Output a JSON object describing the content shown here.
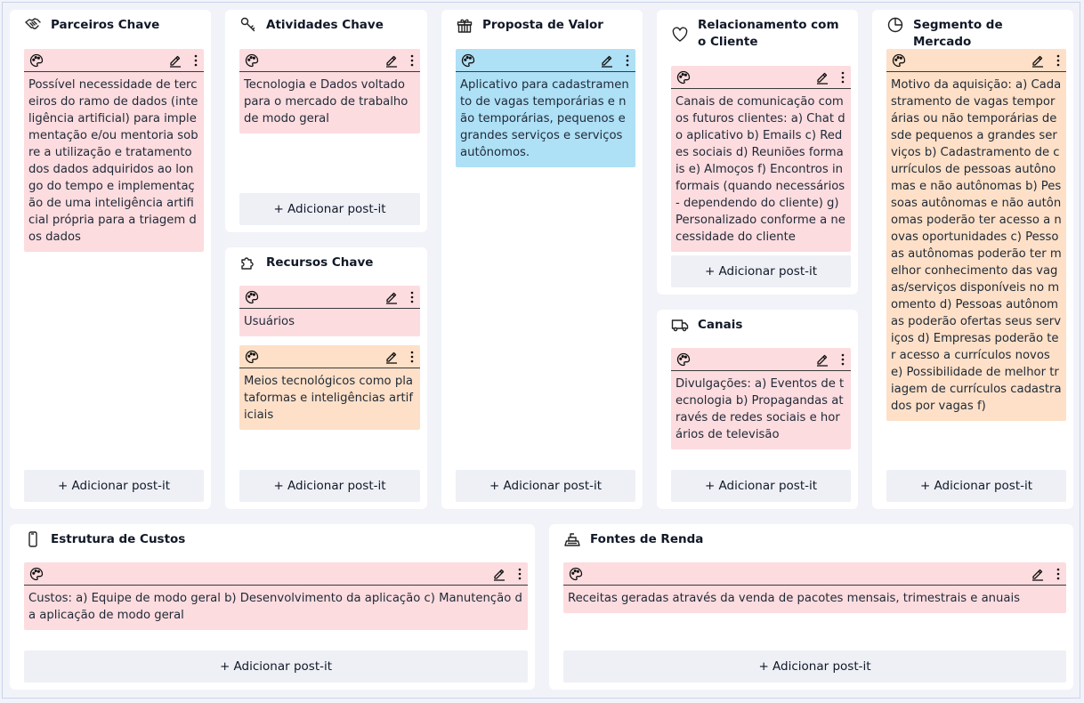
{
  "add_label": "+ Adicionar post-it",
  "blocks": {
    "parceiros": {
      "title": "Parceiros Chave",
      "icon": "handshake-icon",
      "notes": [
        {
          "color": "pink",
          "text": "Possível necessidade de terceiros do ramo de dados (inteligência artificial) para implementação e/ou mentoria sobre a utilização e tratamento dos dados adquiridos ao longo do tempo e implementação de uma inteligência artificial própria para a triagem dos dados"
        }
      ]
    },
    "atividades": {
      "title": "Atividades Chave",
      "icon": "key-icon",
      "notes": [
        {
          "color": "pink",
          "text": "Tecnologia e Dados voltado para o mercado de trabalho de modo geral"
        }
      ]
    },
    "recursos": {
      "title": "Recursos Chave",
      "icon": "puzzle-icon",
      "notes": [
        {
          "color": "pink",
          "text": "Usuários"
        },
        {
          "color": "peach",
          "text": "Meios tecnológicos como plataformas e inteligências artificiais"
        }
      ]
    },
    "proposta": {
      "title": "Proposta de Valor",
      "icon": "gift-icon",
      "notes": [
        {
          "color": "blue",
          "text": "Aplicativo para cadastramento de vagas temporárias e não temporárias, pequenos e grandes serviços e serviços autônomos."
        }
      ]
    },
    "relacionamento": {
      "title": "Relacionamento com o Cliente",
      "icon": "heart-icon",
      "notes": [
        {
          "color": "pink",
          "text": "Canais de comunicação com os futuros clientes: a) Chat do aplicativo b) Emails c) Redes sociais d) Reuniões formais e) Almoços f) Encontros informais (quando necessários - dependendo do cliente) g) Personalizado conforme a necessidade do cliente"
        }
      ]
    },
    "canais": {
      "title": "Canais",
      "icon": "truck-icon",
      "notes": [
        {
          "color": "pink",
          "text": "Divulgações: a) Eventos de tecnologia b) Propagandas através de redes sociais e horários de televisão"
        }
      ]
    },
    "segmento": {
      "title": "Segmento de Mercado",
      "icon": "pie-chart-icon",
      "notes": [
        {
          "color": "peach",
          "text": "Motivo da aquisição: a) Cadastramento de vagas temporárias ou não temporárias desde pequenos a grandes serviços b) Cadastramento de currículos de pessoas autônomas e não autônomas b) Pessoas autônomas e não autônomas poderão ter acesso a novas oportunidades c) Pessoas autônomas poderão ter melhor conhecimento das vagas/serviços disponíveis no momento d) Pessoas autônomas poderão ofertas seus serviços d) Empresas poderão ter acesso a currículos novos e) Possibilidade de melhor triagem de currículos cadastrados por vagas f)"
        }
      ]
    },
    "custos": {
      "title": "Estrutura de Custos",
      "icon": "phone-icon",
      "notes": [
        {
          "color": "pink",
          "text": "Custos: a) Equipe de modo geral b) Desenvolvimento da aplicação c) Manutenção da aplicação de modo geral"
        }
      ]
    },
    "renda": {
      "title": "Fontes de Renda",
      "icon": "cash-register-icon",
      "notes": [
        {
          "color": "pink",
          "text": "Receitas geradas através da venda de pacotes mensais, trimestrais e anuais"
        }
      ]
    }
  }
}
